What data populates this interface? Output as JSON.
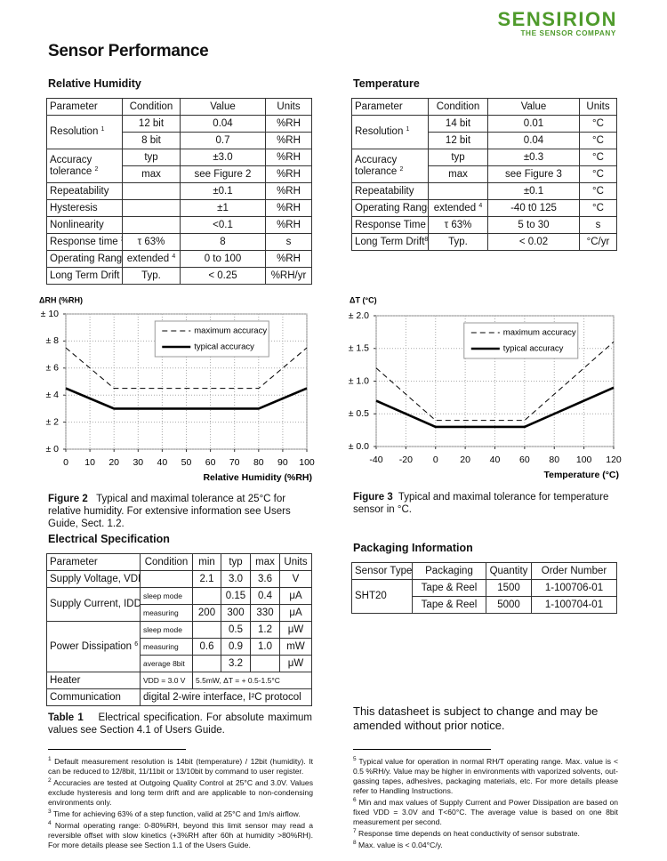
{
  "header": {
    "brand": "SENSIRION",
    "tagline": "THE SENSOR COMPANY",
    "title": "Sensor Performance"
  },
  "rh": {
    "title": "Relative Humidity",
    "header": [
      "Parameter",
      "Condition",
      "Value",
      "Units"
    ],
    "rows": [
      [
        {
          "text": "Resolution",
          "note": "1"
        },
        "12 bit",
        "0.04",
        "%RH"
      ],
      [
        "8 bit",
        "0.7",
        "%RH"
      ],
      [
        {
          "text": "Accuracy tolerance",
          "note": "2"
        },
        "typ",
        "±3.0",
        "%RH"
      ],
      [
        "max",
        "see Figure 2",
        "%RH"
      ],
      [
        "Repeatability",
        "±0.1",
        "%RH"
      ],
      [
        "Hysteresis",
        "±1",
        "%RH"
      ],
      [
        "Nonlinearity",
        "<0.1",
        "%RH"
      ],
      [
        {
          "text": "Response time",
          "note": "3"
        },
        "τ 63%",
        "8",
        "s"
      ],
      [
        "Operating Range",
        {
          "text": "extended",
          "note": "4"
        },
        "0 to 100",
        "%RH"
      ],
      [
        {
          "text": "Long Term Drift",
          "note": "5"
        },
        "Typ.",
        "< 0.25",
        "%RH/yr"
      ]
    ]
  },
  "temp": {
    "title": "Temperature",
    "header": [
      "Parameter",
      "Condition",
      "Value",
      "Units"
    ],
    "rows": [
      [
        {
          "text": "Resolution",
          "note": "1"
        },
        "14 bit",
        "0.01",
        "°C"
      ],
      [
        "12 bit",
        "0.04",
        "°C"
      ],
      [
        {
          "text": "Accuracy tolerance",
          "note": "2"
        },
        "typ",
        "±0.3",
        "°C"
      ],
      [
        "max",
        "see Figure 3",
        "°C"
      ],
      [
        "Repeatability",
        "±0.1",
        "°C"
      ],
      [
        "Operating Range",
        {
          "text": "extended",
          "note": "4"
        },
        "-40 t0 125",
        "°C"
      ],
      [
        {
          "text": "Response Time",
          "note": "7"
        },
        "τ 63%",
        "5 to 30",
        "s"
      ],
      [
        {
          "text": "Long Term Drift",
          "note": "8"
        },
        "Typ.",
        "< 0.02",
        "°C/yr"
      ]
    ]
  },
  "chart_data": [
    {
      "type": "line",
      "y_label": "ΔRH (%RH)",
      "x_label": "Relative Humidity (%RH)",
      "x": [
        0,
        20,
        80,
        100
      ],
      "xlim": [
        0,
        100
      ],
      "xticks": [
        0,
        10,
        20,
        30,
        40,
        50,
        60,
        70,
        80,
        90,
        100
      ],
      "ylim": [
        0,
        10
      ],
      "yticks": [
        {
          "value": 0,
          "label": "± 0"
        },
        {
          "value": 2,
          "label": "± 2"
        },
        {
          "value": 4,
          "label": "± 4"
        },
        {
          "value": 6,
          "label": "± 6"
        },
        {
          "value": 8,
          "label": "± 8"
        },
        {
          "value": 10,
          "label": "± 10"
        }
      ],
      "grid": true,
      "legend": "top",
      "series": [
        {
          "name": "maximum accuracy",
          "color": "#000000",
          "line_style": "dashed",
          "values": [
            7.5,
            4.5,
            4.5,
            7.5
          ]
        },
        {
          "name": "typical accuracy",
          "color": "#000000",
          "line_style": "solid",
          "values": [
            4.5,
            3,
            3,
            4.5
          ]
        }
      ]
    },
    {
      "type": "line",
      "y_label": "ΔT (°C)",
      "x_label": "Temperature (°C)",
      "x": [
        -40,
        0,
        60,
        120
      ],
      "xlim": [
        -40,
        120
      ],
      "xticks": [
        -40,
        -20,
        0,
        20,
        40,
        60,
        80,
        100,
        120
      ],
      "ylim": [
        0,
        2
      ],
      "yticks": [
        {
          "value": 0,
          "label": "± 0.0"
        },
        {
          "value": 0.5,
          "label": "± 0.5"
        },
        {
          "value": 1,
          "label": "± 1.0"
        },
        {
          "value": 1.5,
          "label": "± 1.5"
        },
        {
          "value": 2,
          "label": "± 2.0"
        }
      ],
      "grid": true,
      "legend": "top",
      "series": [
        {
          "name": "maximum accuracy",
          "color": "#000000",
          "line_style": "dashed",
          "values": [
            1.2,
            0.4,
            0.4,
            1.6
          ]
        },
        {
          "name": "typical accuracy",
          "color": "#000000",
          "line_style": "solid",
          "values": [
            0.7,
            0.3,
            0.3,
            0.9
          ]
        }
      ]
    }
  ],
  "fig2": {
    "label": "Figure 2",
    "text": "Typical and maximal tolerance at 25°C for relative humidity. For extensive information see Users Guide, Sect. 1.2."
  },
  "fig3": {
    "label": "Figure 3",
    "text": "Typical and maximal tolerance for temperature sensor in °C."
  },
  "electrical": {
    "title": "Electrical Specification",
    "header": [
      "Parameter",
      "Condition",
      "min",
      "typ",
      "max",
      "Units"
    ],
    "rows": [
      [
        "Supply Voltage, VDD",
        "2.1",
        "3.0",
        "3.6",
        "V"
      ],
      [
        {
          "text": "Supply Current, IDD",
          "note": "6"
        },
        "sleep mode",
        "0.15",
        "0.4",
        "μA"
      ],
      [
        "measuring",
        "200",
        "300",
        "330",
        "μA"
      ],
      [
        {
          "text": "Power Dissipation",
          "note": "6"
        },
        "sleep mode",
        "0.5",
        "1.2",
        "μW"
      ],
      [
        "measuring",
        "0.6",
        "0.9",
        "1.0",
        "mW"
      ],
      [
        "average 8bit",
        "3.2",
        "μW"
      ],
      [
        "Heater",
        "VDD = 3.0 V",
        "5.5mW, ΔT = + 0.5-1.5°C"
      ],
      [
        "Communication",
        "digital 2-wire interface, I²C protocol"
      ]
    ]
  },
  "table1": {
    "label": "Table 1",
    "text": "Electrical specification. For absolute maximum values see Section 4.1 of Users Guide."
  },
  "packaging": {
    "title": "Packaging Information",
    "header": [
      "Sensor Type",
      "Packaging",
      "Quantity",
      "Order Number"
    ],
    "rows": [
      [
        "SHT20",
        "Tape & Reel",
        "1500",
        "1-100706-01"
      ],
      [
        "Tape & Reel",
        "5000",
        "1-100704-01"
      ]
    ]
  },
  "notice": "This datasheet is subject to change and may be amended without prior notice.",
  "footnotes_left": [
    {
      "num": "1",
      "text": "Default measurement resolution is 14bit (temperature) / 12bit (humidity). It can be reduced to 12/8bit, 11/11bit or 13/10bit by command to user register."
    },
    {
      "num": "2",
      "text": "Accuracies are tested at Outgoing Quality Control at 25°C and 3.0V. Values exclude hysteresis and long term drift and are applicable to non-condensing environments only."
    },
    {
      "num": "3",
      "text": "Time for achieving 63% of a step function, valid at 25°C and 1m/s airflow."
    },
    {
      "num": "4",
      "text": "Normal operating range: 0-80%RH, beyond this limit sensor may read a reversible offset with slow kinetics (+3%RH after 60h at humidity >80%RH). For more details please see Section 1.1 of the Users Guide."
    }
  ],
  "footnotes_right": [
    {
      "num": "5",
      "text": "Typical value for operation in normal RH/T operating range. Max. value is < 0.5 %RH/y. Value may be higher in environments with vaporized solvents, out-gassing tapes, adhesives, packaging materials, etc. For more details please refer to Handling Instructions."
    },
    {
      "num": "6",
      "text": "Min and max values of Supply Current and Power Dissipation are based on fixed VDD = 3.0V and T<60°C. The average value is based on one 8bit measurement per second."
    },
    {
      "num": "7",
      "text": "Response time depends on heat conductivity of sensor substrate."
    },
    {
      "num": "8",
      "text": "Max. value is < 0.04°C/y."
    }
  ]
}
